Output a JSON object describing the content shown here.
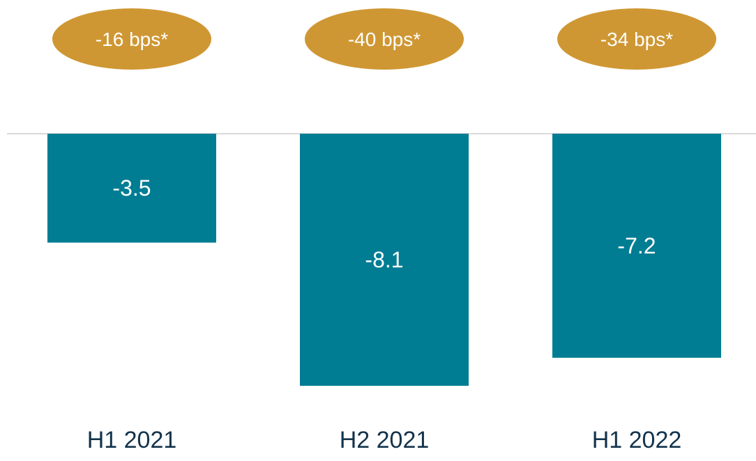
{
  "chart_data": {
    "type": "bar",
    "categories": [
      "H1 2021",
      "H2 2021",
      "H1 2022"
    ],
    "values": [
      -3.5,
      -8.1,
      -7.2
    ],
    "value_labels": [
      "-3.5",
      "-8.1",
      "-7.2"
    ],
    "badges": [
      "-16 bps*",
      "-40 bps*",
      "-34 bps*"
    ],
    "title": "",
    "xlabel": "",
    "ylabel": "",
    "ylim": [
      -8.1,
      0
    ],
    "grid": false,
    "legend": "none"
  },
  "colors": {
    "bar": "#007d93",
    "badge": "#cf9733",
    "axis_line": "#d9d9d9",
    "category_text": "#13334c",
    "label_text": "#ffffff"
  }
}
